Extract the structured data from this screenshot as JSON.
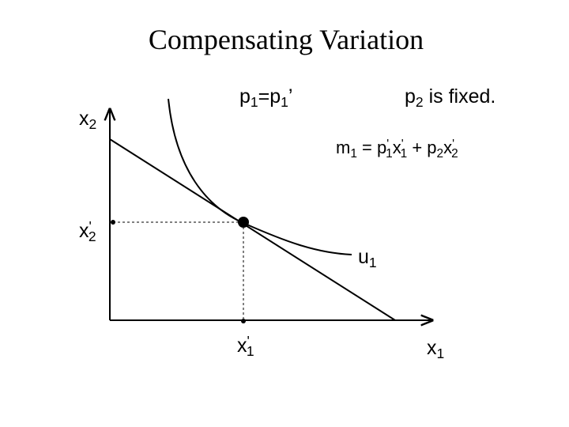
{
  "title": "Compensating Variation",
  "labels": [
    {
      "parts": [
        {
          "t": "x"
        },
        {
          "t": "2",
          "s": "sub"
        }
      ]
    },
    {
      "parts": [
        {
          "t": "p"
        },
        {
          "t": "1",
          "s": "sub"
        },
        {
          "t": "=p"
        },
        {
          "t": "1",
          "s": "sub"
        },
        {
          "t": "’"
        }
      ]
    },
    {
      "parts": [
        {
          "t": "p"
        },
        {
          "t": "2",
          "s": "sub"
        },
        {
          "t": " is fixed."
        }
      ]
    },
    {
      "parts": [
        {
          "t": "m"
        },
        {
          "t": "1",
          "s": "sub"
        },
        {
          "t": " = p"
        },
        {
          "t": "'",
          "s": "sup"
        },
        {
          "t": "1",
          "s": "sub"
        },
        {
          "t": "x"
        },
        {
          "t": "'",
          "s": "sup"
        },
        {
          "t": "1",
          "s": "sub"
        },
        {
          "t": " + p"
        },
        {
          "t": "2",
          "s": "sub"
        },
        {
          "t": "x"
        },
        {
          "t": "'",
          "s": "sup"
        },
        {
          "t": "2",
          "s": "sub"
        }
      ]
    },
    {
      "parts": [
        {
          "t": "x"
        },
        {
          "t": "'",
          "s": "sup"
        },
        {
          "t": "2",
          "s": "sub"
        }
      ]
    },
    {
      "parts": [
        {
          "t": "u"
        },
        {
          "t": "1",
          "s": "sub"
        }
      ]
    },
    {
      "parts": [
        {
          "t": "x"
        },
        {
          "t": "'",
          "s": "sup"
        },
        {
          "t": "1",
          "s": "sub"
        }
      ]
    },
    {
      "parts": [
        {
          "t": "x"
        },
        {
          "t": "1",
          "s": "sub"
        }
      ]
    }
  ]
}
